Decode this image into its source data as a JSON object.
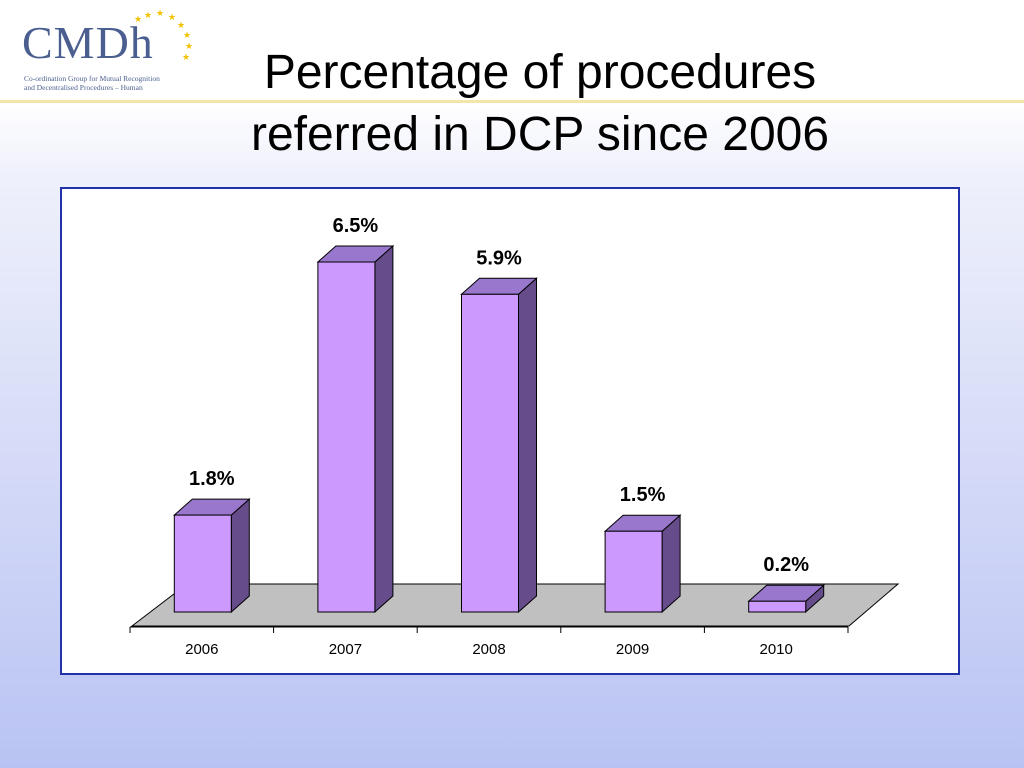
{
  "header": {
    "logo_text": "CMDh",
    "logo_subtitle_line1": "Co-ordination Group for Mutual Recognition",
    "logo_subtitle_line2": "and Decentralised Procedures – Human",
    "title_line1": "Percentage of procedures",
    "title_line2": "referred in DCP since 2006"
  },
  "colors": {
    "bar_front": "#cc99ff",
    "bar_top": "#9977cc",
    "bar_side": "#664c8a",
    "floor": "#c0c0c0",
    "frame_border": "#2233aa"
  },
  "chart_data": {
    "type": "bar",
    "title": "Percentage of procedures referred in DCP since 2006",
    "categories": [
      "2006",
      "2007",
      "2008",
      "2009",
      "2010"
    ],
    "values": [
      1.8,
      6.5,
      5.9,
      1.5,
      0.2
    ],
    "labels": [
      "1.8%",
      "6.5%",
      "5.9%",
      "1.5%",
      "0.2%"
    ],
    "unit": "%",
    "ylim": [
      0,
      6.5
    ],
    "grid": false,
    "legend": "none",
    "style": "3d-bar"
  }
}
